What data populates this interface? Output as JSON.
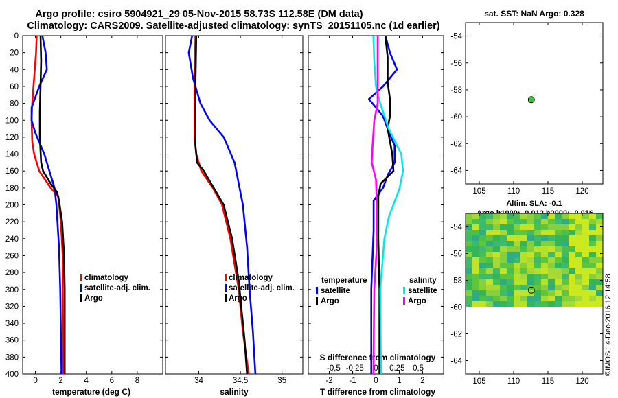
{
  "titles": {
    "line1": "Argo profile: csiro 5904921_29 05-Nov-2015 58.73S 112.58E (DM data)",
    "line2": "Climatology: CARS2009. Satellite-adjusted climatology: synTS_20151105.nc (1d earlier)"
  },
  "colors": {
    "climatology": "#ff0000",
    "satellite": "#0000ff",
    "argo": "#000000",
    "sat_salinity": "#00e8e8",
    "clim_salinity": "#ff00ff"
  },
  "depth_ticks": [
    "0",
    "20",
    "40",
    "60",
    "80",
    "100",
    "120",
    "140",
    "160",
    "180",
    "200",
    "220",
    "240",
    "260",
    "280",
    "300",
    "320",
    "340",
    "360",
    "380",
    "400"
  ],
  "chart_data": [
    {
      "type": "line",
      "name": "temperature",
      "xlabel": "temperature (deg C)",
      "ylabel": "depth (m)",
      "xlim": [
        -1,
        10
      ],
      "ylim": [
        400,
        0
      ],
      "xticks": [
        "0",
        "2",
        "4",
        "6",
        "8"
      ],
      "legend": [
        "climatology",
        "satellite-adj. clim.",
        "Argo"
      ],
      "series": [
        {
          "name": "climatology",
          "color": "#ff0000",
          "points": [
            [
              0.1,
              0
            ],
            [
              0.05,
              20
            ],
            [
              -0.1,
              50
            ],
            [
              -0.25,
              80
            ],
            [
              -0.3,
              100
            ],
            [
              -0.25,
              125
            ],
            [
              -0.1,
              140
            ],
            [
              0.3,
              160
            ],
            [
              1.2,
              180
            ],
            [
              1.8,
              190
            ],
            [
              2.0,
              220
            ],
            [
              2.15,
              260
            ],
            [
              2.15,
              300
            ],
            [
              2.2,
              400
            ]
          ]
        },
        {
          "name": "satellite-adj. clim.",
          "color": "#0000ff",
          "points": [
            [
              0.55,
              0
            ],
            [
              0.8,
              20
            ],
            [
              0.9,
              40
            ],
            [
              0.3,
              60
            ],
            [
              -0.3,
              85
            ],
            [
              -0.3,
              100
            ],
            [
              0.0,
              115
            ],
            [
              0.7,
              140
            ],
            [
              1.1,
              160
            ],
            [
              1.5,
              180
            ],
            [
              1.65,
              200
            ],
            [
              1.85,
              250
            ],
            [
              1.95,
              300
            ],
            [
              2.05,
              400
            ]
          ]
        },
        {
          "name": "Argo",
          "color": "#000000",
          "points": [
            [
              0.4,
              0
            ],
            [
              0.45,
              30
            ],
            [
              0.4,
              60
            ],
            [
              0.35,
              90
            ],
            [
              0.35,
              120
            ],
            [
              0.45,
              150
            ],
            [
              0.6,
              160
            ],
            [
              1.2,
              175
            ],
            [
              1.7,
              185
            ],
            [
              1.85,
              195
            ],
            [
              2.1,
              220
            ],
            [
              2.25,
              260
            ],
            [
              2.3,
              300
            ],
            [
              2.3,
              400
            ]
          ]
        }
      ]
    },
    {
      "type": "line",
      "name": "salinity",
      "xlabel": "salinity",
      "ylabel": "depth (m)",
      "xlim": [
        33.6,
        35.25
      ],
      "ylim": [
        400,
        0
      ],
      "xticks": [
        "34",
        "34.5",
        "35"
      ],
      "legend": [
        "climatology",
        "satellite-adj. clim.",
        "Argo"
      ],
      "series": [
        {
          "name": "climatology",
          "color": "#ff0000",
          "points": [
            [
              33.96,
              0
            ],
            [
              33.95,
              60
            ],
            [
              33.95,
              120
            ],
            [
              33.97,
              140
            ],
            [
              34.03,
              160
            ],
            [
              34.17,
              180
            ],
            [
              34.28,
              200
            ],
            [
              34.38,
              240
            ],
            [
              34.48,
              300
            ],
            [
              34.53,
              350
            ],
            [
              34.6,
              400
            ]
          ]
        },
        {
          "name": "satellite-adj. clim.",
          "color": "#0000ff",
          "points": [
            [
              33.92,
              0
            ],
            [
              33.88,
              20
            ],
            [
              33.93,
              50
            ],
            [
              34.02,
              80
            ],
            [
              34.13,
              100
            ],
            [
              34.3,
              120
            ],
            [
              34.43,
              150
            ],
            [
              34.53,
              200
            ],
            [
              34.58,
              250
            ],
            [
              34.61,
              300
            ],
            [
              34.65,
              350
            ],
            [
              34.68,
              400
            ]
          ]
        },
        {
          "name": "Argo",
          "color": "#000000",
          "points": [
            [
              33.97,
              0
            ],
            [
              33.96,
              60
            ],
            [
              33.96,
              130
            ],
            [
              33.98,
              150
            ],
            [
              34.06,
              160
            ],
            [
              34.18,
              180
            ],
            [
              34.3,
              200
            ],
            [
              34.4,
              240
            ],
            [
              34.48,
              290
            ],
            [
              34.52,
              330
            ],
            [
              34.55,
              360
            ],
            [
              34.58,
              400
            ]
          ]
        }
      ]
    },
    {
      "type": "line",
      "name": "difference",
      "xlabel": "T difference from climatology",
      "xlabel_top": "S difference from climatology",
      "ylim": [
        400,
        0
      ],
      "xlim": [
        -2.9,
        2.9
      ],
      "xticks": [
        "-2",
        "-1",
        "0",
        "1",
        "2"
      ],
      "xlim_top": [
        -0.8,
        0.8
      ],
      "xticks_top": [
        "-0.5",
        "-0.25",
        "0",
        "0.25",
        "0.5"
      ],
      "legend_left": {
        "title": "temperature",
        "items": [
          "satellite",
          "Argo"
        ]
      },
      "legend_right": {
        "title": "salinity",
        "items": [
          "satellite",
          "Argo"
        ]
      },
      "series": [
        {
          "name": "temperature satellite",
          "color": "#0000ff",
          "axis": "T",
          "points": [
            [
              0.4,
              0
            ],
            [
              0.6,
              20
            ],
            [
              0.9,
              40
            ],
            [
              0.3,
              60
            ],
            [
              -0.3,
              75
            ],
            [
              0.3,
              95
            ],
            [
              0.5,
              110
            ],
            [
              0.8,
              130
            ],
            [
              0.8,
              150
            ],
            [
              0.5,
              165
            ],
            [
              0.3,
              180
            ],
            [
              -0.1,
              195
            ],
            [
              -0.1,
              230
            ],
            [
              -0.2,
              300
            ],
            [
              -0.2,
              400
            ]
          ]
        },
        {
          "name": "temperature Argo",
          "color": "#000000",
          "axis": "T",
          "points": [
            [
              0.4,
              0
            ],
            [
              0.5,
              25
            ],
            [
              0.5,
              55
            ],
            [
              0.6,
              75
            ],
            [
              0.6,
              95
            ],
            [
              0.5,
              110
            ],
            [
              0.6,
              125
            ],
            [
              0.7,
              140
            ],
            [
              0.75,
              160
            ],
            [
              0.2,
              175
            ],
            [
              0.1,
              190
            ],
            [
              0.1,
              240
            ],
            [
              0.15,
              300
            ],
            [
              0.15,
              400
            ]
          ]
        },
        {
          "name": "salinity satellite",
          "color": "#00e8e8",
          "axis": "S",
          "points": [
            [
              -0.03,
              0
            ],
            [
              -0.02,
              30
            ],
            [
              0.0,
              60
            ],
            [
              0.05,
              80
            ],
            [
              0.15,
              110
            ],
            [
              0.3,
              140
            ],
            [
              0.32,
              160
            ],
            [
              0.28,
              180
            ],
            [
              0.15,
              215
            ],
            [
              0.1,
              240
            ],
            [
              0.05,
              300
            ],
            [
              0.06,
              400
            ]
          ]
        },
        {
          "name": "salinity Argo",
          "color": "#ff00ff",
          "axis": "S",
          "points": [
            [
              0.02,
              0
            ],
            [
              0.02,
              40
            ],
            [
              0.02,
              80
            ],
            [
              -0.02,
              100
            ],
            [
              -0.04,
              130
            ],
            [
              -0.05,
              150
            ],
            [
              0.0,
              170
            ],
            [
              0.01,
              200
            ],
            [
              0.01,
              250
            ],
            [
              -0.02,
              300
            ],
            [
              -0.03,
              400
            ]
          ]
        }
      ]
    },
    {
      "type": "scatter",
      "name": "SST map",
      "title": "sat. SST: NaN Argo: 0.328",
      "xlim": [
        103,
        123
      ],
      "ylim": [
        -65,
        -53
      ],
      "xticks": [
        "105",
        "110",
        "115",
        "120"
      ],
      "yticks": [
        "-54",
        "-56",
        "-58",
        "-60",
        "-62",
        "-64"
      ],
      "point": [
        112.58,
        -58.73
      ]
    },
    {
      "type": "heatmap",
      "name": "SLA map",
      "title1": "Altim. SLA: -0.1",
      "title2": "Argo h1000: -0.012 h2000: -0.016",
      "xlim": [
        103,
        123
      ],
      "ylim": [
        -65,
        -53
      ],
      "xticks": [
        "105",
        "110",
        "115",
        "120"
      ],
      "yticks": [
        "-54",
        "-56",
        "-58",
        "-60",
        "-62",
        "-64"
      ],
      "point": [
        112.58,
        -58.73
      ],
      "data_extent_lat": [
        -60,
        -53
      ]
    }
  ],
  "watermark": "©IMOS 14-Dec-2016 12:14:58"
}
